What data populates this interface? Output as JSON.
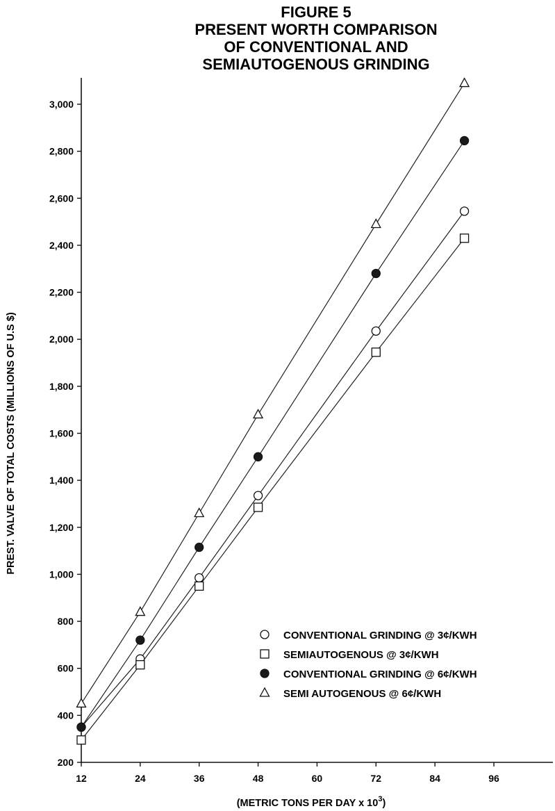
{
  "chart_data": {
    "type": "line",
    "title_lines": [
      "FIGURE 5",
      "PRESENT WORTH COMPARISON",
      "OF CONVENTIONAL AND",
      "SEMIAUTOGENOUS GRINDING"
    ],
    "xlabel": "(METRIC TONS PER DAY x 10",
    "xlabel_sup": "3",
    "xlabel_tail": ")",
    "ylabel": "PREST. VALVE OF TOTAL COSTS (MILLIONS OF U.S $)",
    "x_ticks": [
      12,
      24,
      36,
      48,
      60,
      72,
      84,
      96
    ],
    "x_tick_labels": [
      "12",
      "24",
      "36",
      "48",
      "60",
      "72",
      "84",
      "96"
    ],
    "y_ticks": [
      200,
      400,
      600,
      800,
      1000,
      1200,
      1400,
      1600,
      1800,
      2000,
      2200,
      2400,
      2600,
      2800,
      3000
    ],
    "y_tick_labels": [
      "200",
      "400",
      "600",
      "800",
      "1,000",
      "1,200",
      "1,400",
      "1,600",
      "1,800",
      "2,000",
      "2,200",
      "2,400",
      "2,600",
      "2,800",
      "3,000"
    ],
    "xlim": [
      12,
      96
    ],
    "ylim": [
      200,
      3000
    ],
    "grid": false,
    "legend_position": "bottom-right",
    "series": [
      {
        "name": "CONVENTIONAL GRINDING @ 3¢/KWH",
        "marker": "open-circle",
        "x": [
          12,
          24,
          36,
          48,
          72,
          90
        ],
        "y": [
          350,
          640,
          985,
          1335,
          2035,
          2545
        ]
      },
      {
        "name": "SEMIAUTOGENOUS @ 3¢/KWH",
        "marker": "open-square",
        "x": [
          12,
          24,
          36,
          48,
          72,
          90
        ],
        "y": [
          295,
          615,
          950,
          1285,
          1945,
          2430
        ]
      },
      {
        "name": "CONVENTIONAL GRINDING @ 6¢/KWH",
        "marker": "filled-circle",
        "x": [
          12,
          24,
          36,
          48,
          72,
          90
        ],
        "y": [
          350,
          720,
          1115,
          1500,
          2280,
          2845
        ]
      },
      {
        "name": "SEMI AUTOGENOUS @ 6¢/KWH",
        "marker": "open-triangle",
        "x": [
          12,
          24,
          36,
          48,
          72,
          90
        ],
        "y": [
          450,
          840,
          1260,
          1680,
          2490,
          3090
        ]
      }
    ]
  }
}
